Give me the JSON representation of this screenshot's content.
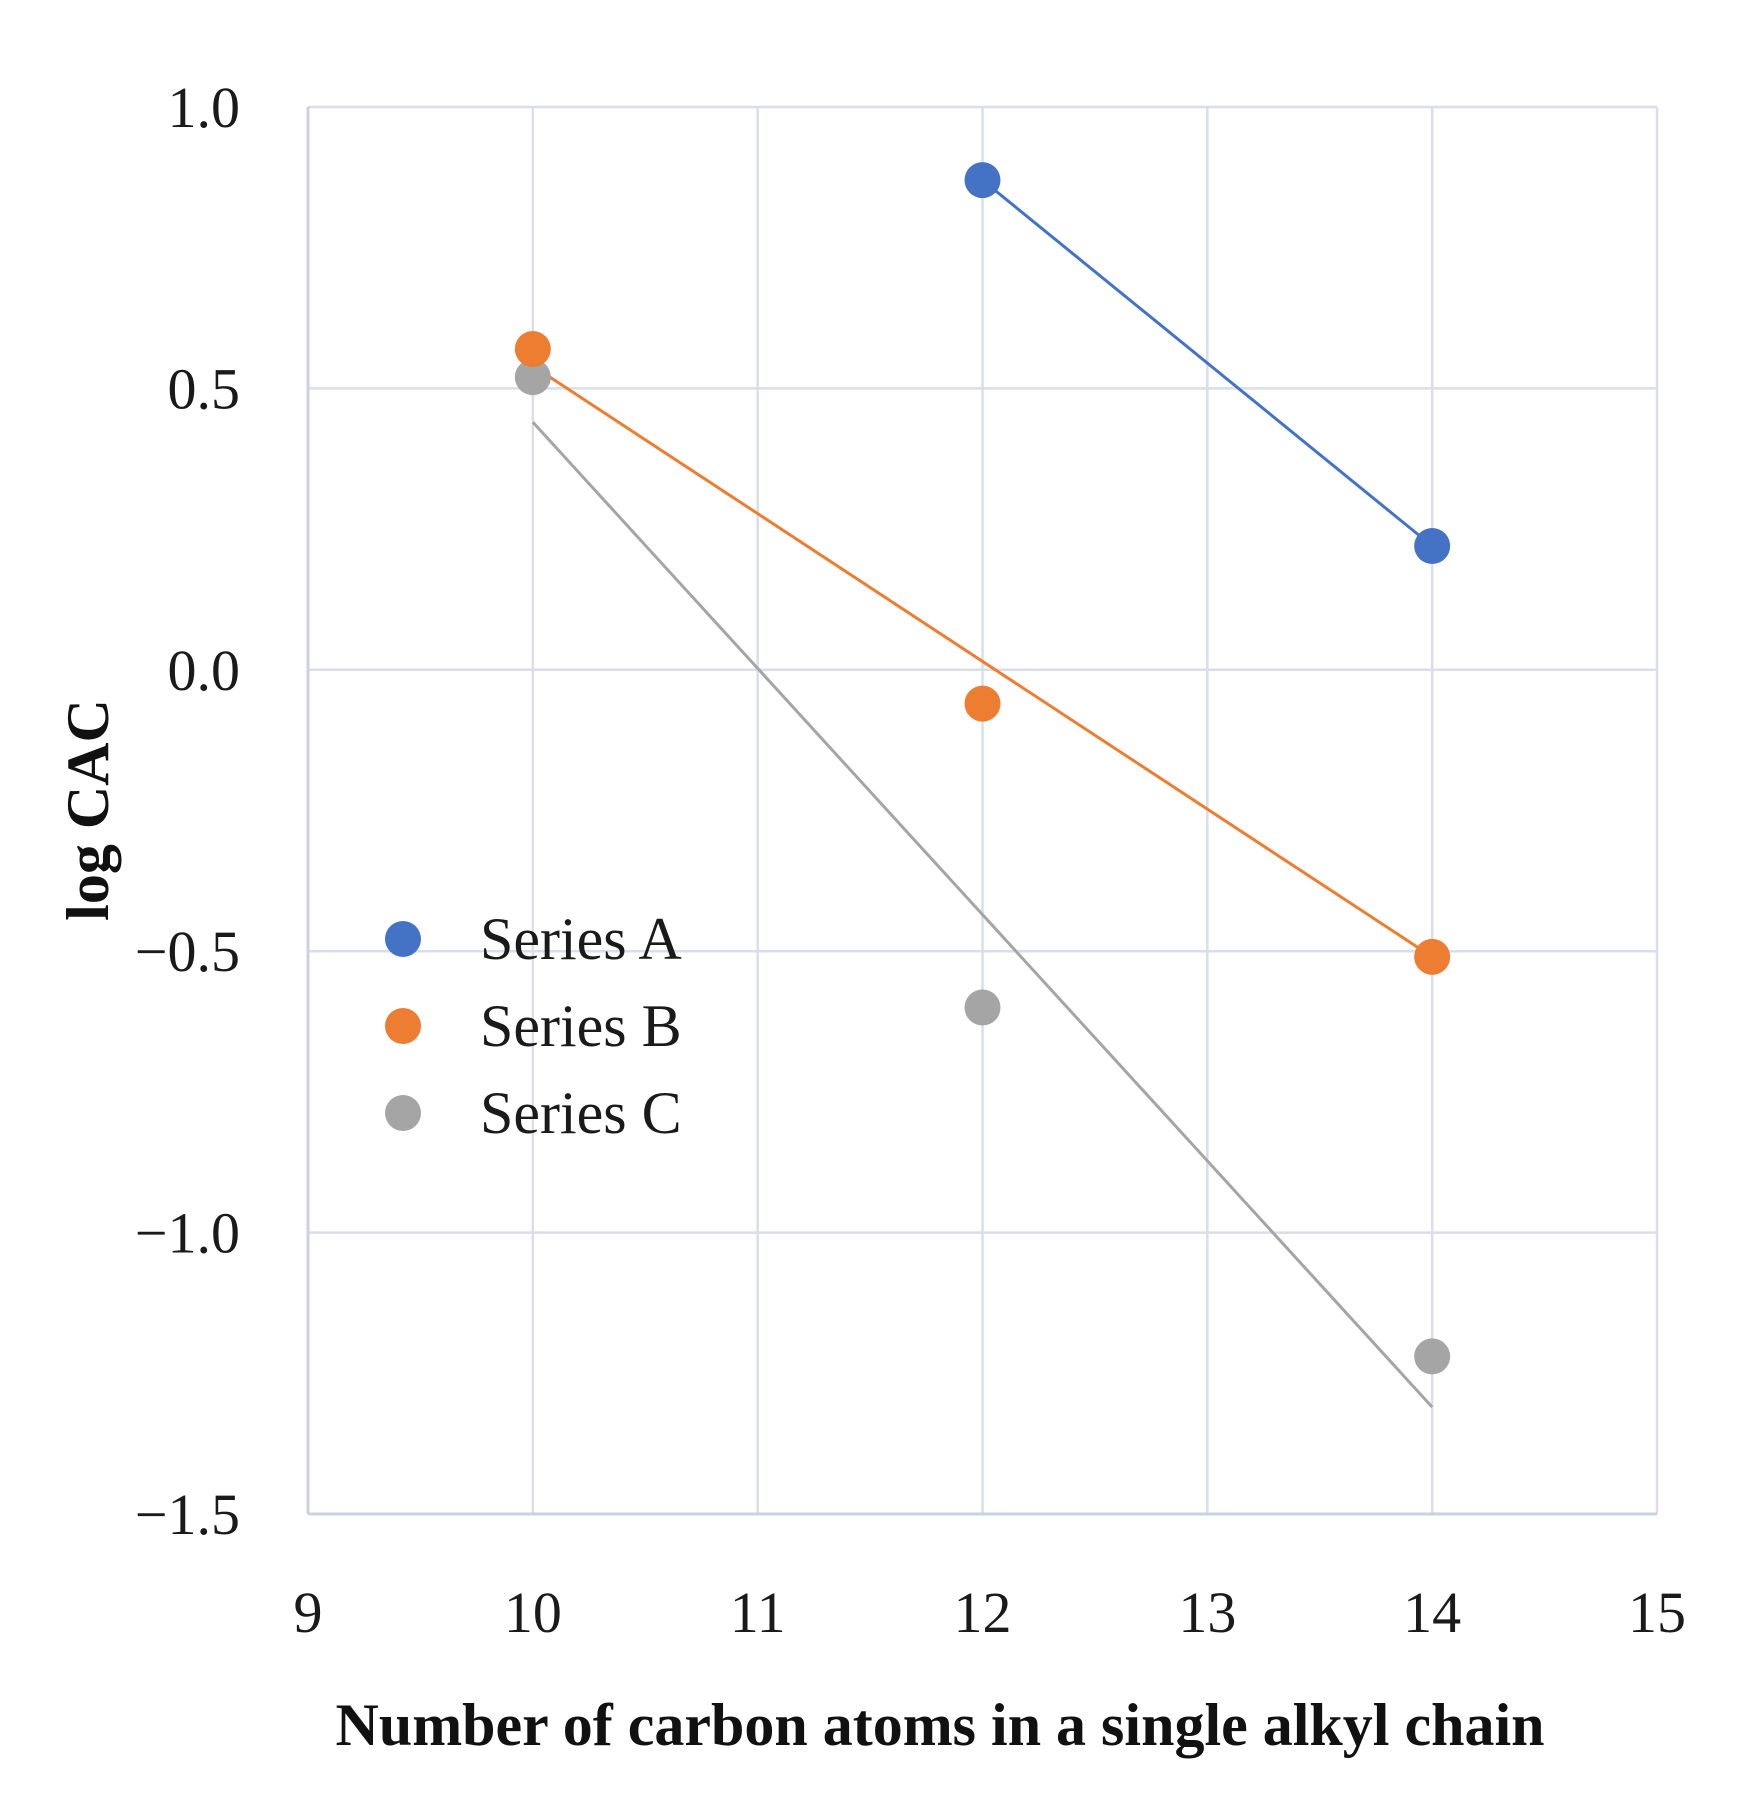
{
  "chart_data": {
    "type": "scatter",
    "title": "",
    "xlabel": "Number of carbon atoms in a single alkyl chain",
    "ylabel": "log CAC",
    "xlim": [
      9,
      15
    ],
    "ylim": [
      -1.5,
      1.0
    ],
    "xticks": [
      9,
      10,
      11,
      12,
      13,
      14,
      15
    ],
    "yticks": [
      1.0,
      0.5,
      0.0,
      -0.5,
      -1.0,
      -1.5
    ],
    "xtick_labels": [
      "9",
      "10",
      "11",
      "12",
      "13",
      "14",
      "15"
    ],
    "ytick_labels": [
      "1.0",
      "0.5",
      "0.0",
      "−0.5",
      "−1.0",
      "−1.5"
    ],
    "grid": true,
    "legend_position": "center-left",
    "series": [
      {
        "name": "Series A",
        "color": "#4472C4",
        "points": [
          {
            "x": 12,
            "y": 0.87
          },
          {
            "x": 14,
            "y": 0.22
          }
        ],
        "trendline": {
          "x": [
            12,
            14
          ],
          "y": [
            0.87,
            0.22
          ]
        }
      },
      {
        "name": "Series B",
        "color": "#ED7D31",
        "points": [
          {
            "x": 10,
            "y": 0.57
          },
          {
            "x": 12,
            "y": -0.06
          },
          {
            "x": 14,
            "y": -0.51
          }
        ],
        "trendline": {
          "x": [
            10,
            14
          ],
          "y": [
            0.54,
            -0.51
          ]
        }
      },
      {
        "name": "Series C",
        "color": "#A5A5A5",
        "points": [
          {
            "x": 10,
            "y": 0.52
          },
          {
            "x": 12,
            "y": -0.6
          },
          {
            "x": 14,
            "y": -1.22
          }
        ],
        "trendline": {
          "x": [
            10,
            14
          ],
          "y": [
            0.44,
            -1.31
          ]
        }
      }
    ]
  }
}
